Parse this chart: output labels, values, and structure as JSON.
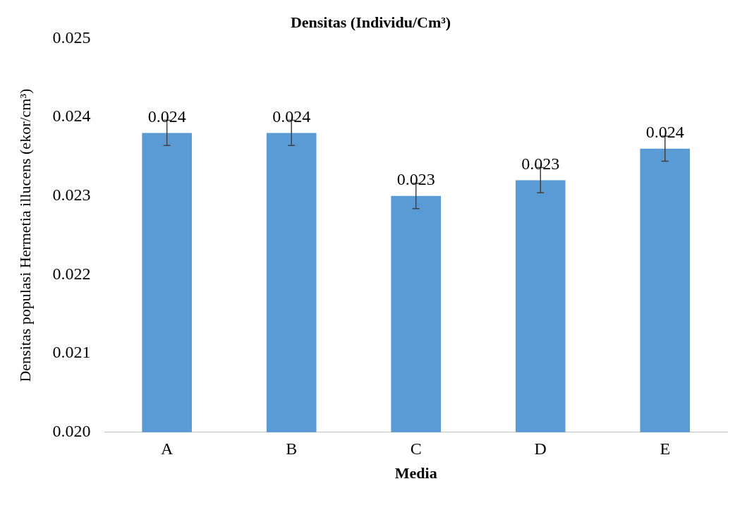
{
  "chart_data": {
    "type": "bar",
    "title": "Densitas (Individu/Cm³)",
    "xlabel": "Media",
    "ylabel": "Densitas populasi Hermetia illucens (ekor/cm³)",
    "categories": [
      "A",
      "B",
      "C",
      "D",
      "E"
    ],
    "values": [
      0.0238,
      0.0238,
      0.023,
      0.0232,
      0.0236
    ],
    "errors": [
      0.00016,
      0.00016,
      0.00016,
      0.00016,
      0.00016
    ],
    "value_labels": [
      "0.024",
      "0.024",
      "0.023",
      "0.023",
      "0.024"
    ],
    "color": "#5b9bd5",
    "ylim": [
      0.02,
      0.025
    ],
    "yticks": [
      {
        "value": 0.02,
        "label": "0.020"
      },
      0.021,
      0.022,
      0.023,
      0.024,
      0.025
    ],
    "grid": false,
    "legend": false
  }
}
